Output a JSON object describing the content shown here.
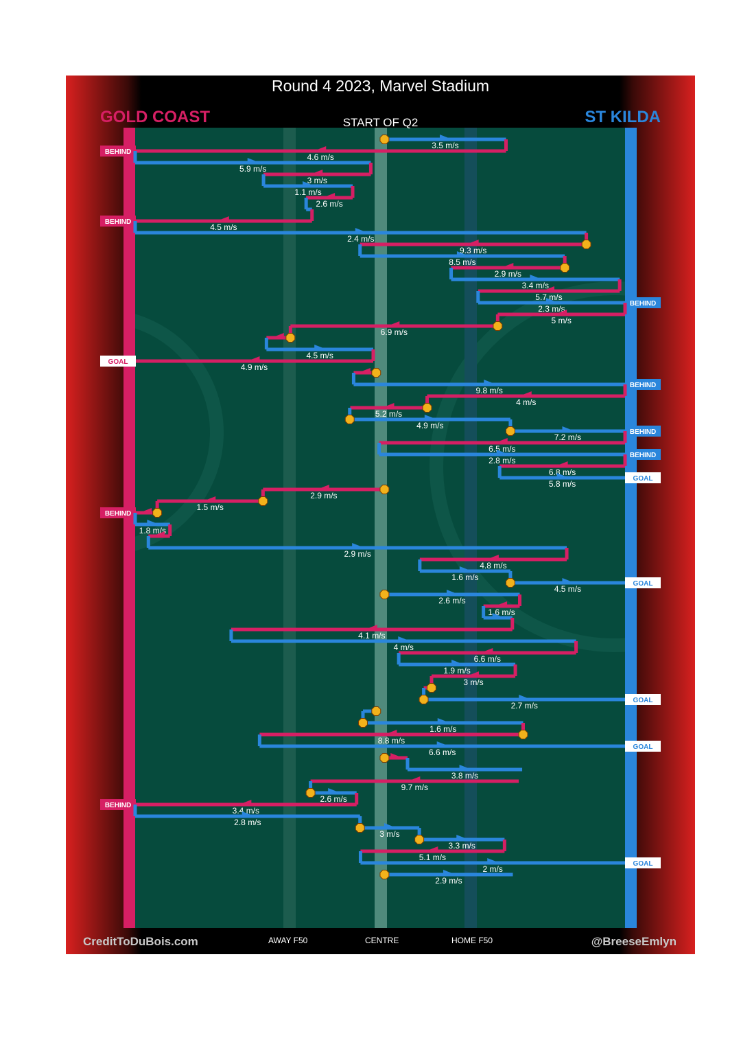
{
  "title": "Round 4 2023, Marvel Stadium",
  "quarter": "START OF Q2",
  "teams": {
    "left": {
      "name": "GOLD COAST",
      "color": "#d61f64"
    },
    "right": {
      "name": "ST KILDA",
      "color": "#2a86dc"
    }
  },
  "footer": {
    "credit_left": "CreditToDuBois.com",
    "credit_right": "@BreeseEmlyn",
    "axis_labels": [
      "AWAY F50",
      "CENTRE",
      "HOME F50"
    ]
  },
  "chart_data": {
    "type": "line",
    "description_axis": "ground position from Gold Coast goal (0) to St Kilda goal (100)",
    "colors": {
      "gold_coast": "#d61f64",
      "st_kilda": "#2a86dc",
      "field": "#064b3d",
      "turnover_marker": "#f2b21b"
    },
    "chains": [
      {
        "team": "stk",
        "x0": 50.9,
        "x1": 75.7,
        "speed": "3.5 m/s",
        "start": "marker",
        "end": null
      },
      {
        "team": "gc",
        "x0": 75.7,
        "x1": 0,
        "speed": "4.6 m/s",
        "end": "BEHIND"
      },
      {
        "team": "stk",
        "x0": 0,
        "x1": 48.1,
        "speed": "5.9 m/s",
        "end": null
      },
      {
        "team": "gc",
        "x0": 48.1,
        "x1": 26.2,
        "speed": "3 m/s",
        "end": null
      },
      {
        "team": "stk",
        "x0": 26.2,
        "x1": 44.4,
        "speed": "1.1 m/s",
        "end": null
      },
      {
        "team": "gc",
        "x0": 44.4,
        "x1": 34.9,
        "speed": "2.6 m/s",
        "end": null
      },
      {
        "team": "stk",
        "x0": 34.9,
        "x1": 36.1,
        "speed": "",
        "end": null
      },
      {
        "team": "gc",
        "x0": 36.1,
        "x1": 0,
        "speed": "4.5 m/s",
        "end": "BEHIND"
      },
      {
        "team": "stk",
        "x0": 0,
        "x1": 92.1,
        "speed": "2.4 m/s",
        "end": null
      },
      {
        "team": "gc",
        "x0": 92.1,
        "x1": 45.9,
        "speed": "9.3 m/s",
        "start": "marker",
        "end": null
      },
      {
        "team": "stk",
        "x0": 45.9,
        "x1": 87.7,
        "speed": "8.5 m/s",
        "end": null
      },
      {
        "team": "gc",
        "x0": 87.7,
        "x1": 64.5,
        "speed": "2.9 m/s",
        "start": "marker",
        "end": null
      },
      {
        "team": "stk",
        "x0": 64.5,
        "x1": 98.9,
        "speed": "3.4 m/s",
        "end": null
      },
      {
        "team": "gc",
        "x0": 98.9,
        "x1": 70.0,
        "speed": "5.7 m/s",
        "end": null
      },
      {
        "team": "stk",
        "x0": 70.0,
        "x1": 100,
        "speed": "2.3 m/s",
        "end": "BEHIND"
      },
      {
        "team": "gc",
        "x0": 100,
        "x1": 74.0,
        "speed": "5 m/s",
        "end": null
      },
      {
        "team": "gc",
        "x0": 74.0,
        "x1": 31.7,
        "speed": "6.9 m/s",
        "start": "marker",
        "end": null
      },
      {
        "team": "gc",
        "x0": 31.7,
        "x1": 26.8,
        "speed": "",
        "start": "marker",
        "end": null
      },
      {
        "team": "stk",
        "x0": 26.8,
        "x1": 48.6,
        "speed": "4.5 m/s",
        "end": null
      },
      {
        "team": "gc",
        "x0": 48.6,
        "x1": 0,
        "speed": "4.9 m/s",
        "end": "GOAL"
      },
      {
        "team": "gc",
        "x0": 49.2,
        "x1": 44.6,
        "speed": "",
        "start": "marker",
        "end": null
      },
      {
        "team": "stk",
        "x0": 44.6,
        "x1": 100,
        "speed": "9.8 m/s",
        "end": "BEHIND"
      },
      {
        "team": "gc",
        "x0": 100,
        "x1": 59.6,
        "speed": "4 m/s",
        "end": null
      },
      {
        "team": "gc",
        "x0": 59.6,
        "x1": 43.9,
        "speed": "5.2 m/s",
        "start": "marker",
        "end": null
      },
      {
        "team": "stk",
        "x0": 43.8,
        "x1": 76.6,
        "speed": "4.9 m/s",
        "start": "marker",
        "end": null
      },
      {
        "team": "stk",
        "x0": 76.6,
        "x1": 100,
        "speed": "7.2 m/s",
        "start": "marker",
        "end": "BEHIND"
      },
      {
        "team": "gc",
        "x0": 100,
        "x1": 49.8,
        "speed": "6.5 m/s",
        "end": null
      },
      {
        "team": "stk",
        "x0": 49.8,
        "x1": 100,
        "speed": "2.8 m/s",
        "end": "BEHIND"
      },
      {
        "team": "gc",
        "x0": 100,
        "x1": 74.4,
        "speed": "6.8 m/s",
        "end": null
      },
      {
        "team": "stk",
        "x0": 74.4,
        "x1": 100,
        "speed": "5.8 m/s",
        "end": "GOAL"
      },
      {
        "team": "gc",
        "x0": 50.9,
        "x1": 26.1,
        "speed": "2.9 m/s",
        "start": "marker",
        "end": null
      },
      {
        "team": "gc",
        "x0": 26.1,
        "x1": 4.5,
        "speed": "1.5 m/s",
        "start": "marker",
        "end": null
      },
      {
        "team": "gc",
        "x0": 4.5,
        "x1": 0,
        "speed": "",
        "start": "marker",
        "end": "BEHIND"
      },
      {
        "team": "stk",
        "x0": 0,
        "x1": 7.1,
        "speed": "1.8 m/s",
        "end": null
      },
      {
        "team": "gc",
        "x0": 7.1,
        "x1": 2.7,
        "speed": "",
        "end": null
      },
      {
        "team": "stk",
        "x0": 2.7,
        "x1": 88.1,
        "speed": "2.9 m/s",
        "end": null
      },
      {
        "team": "gc",
        "x0": 88.1,
        "x1": 58.1,
        "speed": "4.8 m/s",
        "end": null
      },
      {
        "team": "stk",
        "x0": 58.1,
        "x1": 76.6,
        "speed": "1.6 m/s",
        "end": null
      },
      {
        "team": "stk",
        "x0": 76.6,
        "x1": 100,
        "speed": "4.5 m/s",
        "start": "marker",
        "end": "GOAL"
      },
      {
        "team": "stk",
        "x0": 50.9,
        "x1": 78.5,
        "speed": "2.6 m/s",
        "start": "marker",
        "end": null
      },
      {
        "team": "gc",
        "x0": 78.5,
        "x1": 71.1,
        "speed": "1.6 m/s",
        "end": null
      },
      {
        "team": "stk",
        "x0": 71.1,
        "x1": 77.0,
        "speed": "",
        "end": null
      },
      {
        "team": "gc",
        "x0": 77.0,
        "x1": 19.6,
        "speed": "4.1 m/s",
        "end": null
      },
      {
        "team": "stk",
        "x0": 19.6,
        "x1": 90.0,
        "speed": "4 m/s",
        "end": null
      },
      {
        "team": "gc",
        "x0": 90.0,
        "x1": 53.8,
        "speed": "6.6 m/s",
        "end": null
      },
      {
        "team": "stk",
        "x0": 53.8,
        "x1": 77.6,
        "speed": "1.9 m/s",
        "end": null
      },
      {
        "team": "gc",
        "x0": 77.6,
        "x1": 60.5,
        "speed": "3 m/s",
        "end": null
      },
      {
        "team": "gc",
        "x0": 60.5,
        "x1": 58.9,
        "speed": "",
        "start": "marker",
        "end": null
      },
      {
        "team": "stk",
        "x0": 58.9,
        "x1": 100,
        "speed": "2.7 m/s",
        "start": "marker",
        "end": "GOAL"
      },
      {
        "team": "stk",
        "x0": 49.2,
        "x1": 46.5,
        "speed": "",
        "start": "marker",
        "end": null
      },
      {
        "team": "stk",
        "x0": 46.5,
        "x1": 79.2,
        "speed": "1.6 m/s",
        "start": "marker",
        "end": null
      },
      {
        "team": "gc",
        "x0": 79.2,
        "x1": 25.4,
        "speed": "8.8 m/s",
        "start": "marker",
        "end": null
      },
      {
        "team": "stk",
        "x0": 25.4,
        "x1": 100,
        "speed": "6.6 m/s",
        "end": "GOAL"
      },
      {
        "team": "gc",
        "x0": 50.9,
        "x1": 55.6,
        "speed": "",
        "start": "marker",
        "end": null
      },
      {
        "team": "stk",
        "x0": 55.6,
        "x1": 79.0,
        "speed": "3.8 m/s",
        "end": null
      },
      {
        "team": "gc",
        "x0": 78.3,
        "x1": 35.8,
        "speed": "9.7 m/s",
        "end": null
      },
      {
        "team": "stk",
        "x0": 35.8,
        "x1": 45.2,
        "speed": "2.6 m/s",
        "start": "marker",
        "end": null
      },
      {
        "team": "gc",
        "x0": 45.2,
        "x1": 0,
        "speed": "3.4 m/s",
        "end": "BEHIND"
      },
      {
        "team": "stk",
        "x0": 0,
        "x1": 45.9,
        "speed": "2.8 m/s",
        "end": null
      },
      {
        "team": "stk",
        "x0": 45.9,
        "x1": 58.0,
        "speed": "3 m/s",
        "start": "marker",
        "end": null
      },
      {
        "team": "stk",
        "x0": 58.0,
        "x1": 75.4,
        "speed": "3.3 m/s",
        "start": "marker",
        "end": null
      },
      {
        "team": "gc",
        "x0": 75.4,
        "x1": 46.0,
        "speed": "5.1 m/s",
        "end": null
      },
      {
        "team": "stk",
        "x0": 46.0,
        "x1": 100,
        "speed": "2 m/s",
        "end": "GOAL"
      },
      {
        "team": "stk",
        "x0": 50.9,
        "x1": 77.1,
        "speed": "2.9 m/s",
        "start": "marker",
        "end": null
      }
    ]
  }
}
